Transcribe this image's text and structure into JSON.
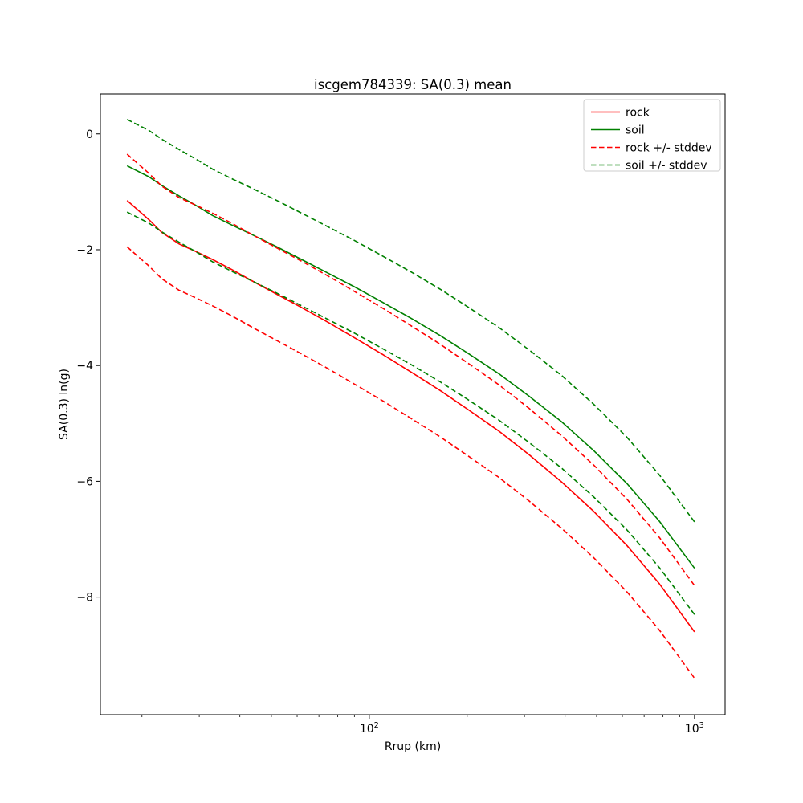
{
  "chart_data": {
    "type": "line",
    "title": "iscgem784339: SA(0.3) mean",
    "xlabel": "Rrup (km)",
    "ylabel": "SA(0.3) ln(g)",
    "x_scale": "log",
    "y_scale": "linear",
    "xlim": [
      14.9,
      1242
    ],
    "ylim": [
      -10.03,
      0.69
    ],
    "grid": false,
    "x_major_ticks": [
      {
        "value": 100,
        "base": "10",
        "exp": "2"
      },
      {
        "value": 1000,
        "base": "10",
        "exp": "3"
      }
    ],
    "x_minor_ticks": [
      20,
      30,
      40,
      50,
      60,
      70,
      80,
      90,
      200,
      300,
      400,
      500,
      600,
      700,
      800,
      900
    ],
    "y_major_ticks": [
      {
        "value": 0,
        "label": "0"
      },
      {
        "value": -2,
        "label": "−2"
      },
      {
        "value": -4,
        "label": "−4"
      },
      {
        "value": -6,
        "label": "−6"
      },
      {
        "value": -8,
        "label": "−8"
      }
    ],
    "colors": {
      "rock": "#ff0000",
      "soil": "#008000",
      "legend_edge": "#cccccc",
      "spine": "#000000"
    },
    "x": [
      18,
      21,
      23,
      26,
      29,
      33,
      38,
      44,
      52,
      62,
      75,
      90,
      110,
      135,
      165,
      200,
      250,
      310,
      390,
      490,
      620,
      780,
      1000
    ],
    "series": [
      {
        "label": "rock",
        "color": "#ff0000",
        "dash": false,
        "values": [
          -1.15,
          -1.48,
          -1.7,
          -1.9,
          -2.02,
          -2.17,
          -2.35,
          -2.55,
          -2.77,
          -3.0,
          -3.26,
          -3.52,
          -3.81,
          -4.12,
          -4.43,
          -4.75,
          -5.13,
          -5.54,
          -6.01,
          -6.52,
          -7.11,
          -7.77,
          -8.6
        ]
      },
      {
        "label": "soil",
        "color": "#008000",
        "dash": false,
        "values": [
          -0.55,
          -0.74,
          -0.89,
          -1.07,
          -1.22,
          -1.41,
          -1.58,
          -1.75,
          -1.95,
          -2.17,
          -2.41,
          -2.64,
          -2.91,
          -3.19,
          -3.48,
          -3.78,
          -4.14,
          -4.53,
          -4.97,
          -5.47,
          -6.04,
          -6.69,
          -7.5
        ]
      },
      {
        "label": "rock + stddev",
        "color": "#ff0000",
        "dash": true,
        "values": [
          -0.35,
          -0.68,
          -0.9,
          -1.1,
          -1.22,
          -1.37,
          -1.55,
          -1.75,
          -1.97,
          -2.2,
          -2.46,
          -2.72,
          -3.01,
          -3.32,
          -3.63,
          -3.95,
          -4.33,
          -4.74,
          -5.21,
          -5.72,
          -6.31,
          -6.97,
          -7.8
        ]
      },
      {
        "label": "rock - stddev",
        "color": "#ff0000",
        "dash": true,
        "values": [
          -1.95,
          -2.28,
          -2.5,
          -2.7,
          -2.82,
          -2.97,
          -3.15,
          -3.35,
          -3.57,
          -3.8,
          -4.06,
          -4.32,
          -4.61,
          -4.92,
          -5.23,
          -5.55,
          -5.93,
          -6.34,
          -6.81,
          -7.32,
          -7.91,
          -8.57,
          -9.4
        ]
      },
      {
        "label": "soil + stddev",
        "color": "#008000",
        "dash": true,
        "values": [
          0.25,
          0.06,
          -0.09,
          -0.27,
          -0.42,
          -0.61,
          -0.78,
          -0.95,
          -1.15,
          -1.37,
          -1.61,
          -1.84,
          -2.11,
          -2.39,
          -2.68,
          -2.98,
          -3.34,
          -3.73,
          -4.17,
          -4.67,
          -5.24,
          -5.89,
          -6.7
        ]
      },
      {
        "label": "soil - stddev",
        "color": "#008000",
        "dash": true,
        "values": [
          -1.35,
          -1.54,
          -1.69,
          -1.87,
          -2.02,
          -2.21,
          -2.38,
          -2.55,
          -2.75,
          -2.97,
          -3.21,
          -3.44,
          -3.71,
          -3.99,
          -4.28,
          -4.58,
          -4.94,
          -5.33,
          -5.77,
          -6.27,
          -6.84,
          -7.49,
          -8.3
        ]
      }
    ],
    "legend": {
      "location": "upper right",
      "entries": [
        {
          "label": "rock",
          "color": "#ff0000",
          "dash": false
        },
        {
          "label": "soil",
          "color": "#008000",
          "dash": false
        },
        {
          "label": "rock +/- stddev",
          "color": "#ff0000",
          "dash": true
        },
        {
          "label": "soil +/- stddev",
          "color": "#008000",
          "dash": true
        }
      ]
    }
  }
}
